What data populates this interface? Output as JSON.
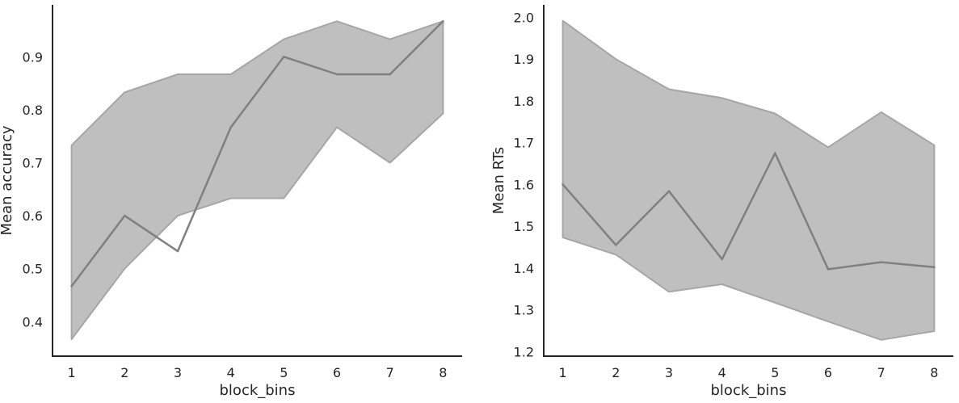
{
  "chart_data": [
    {
      "type": "line",
      "x": [
        1,
        2,
        3,
        4,
        5,
        6,
        7,
        8
      ],
      "xticks": [
        "1",
        "2",
        "3",
        "4",
        "5",
        "6",
        "7",
        "8"
      ],
      "xlim": [
        0.64,
        8.36
      ],
      "xlabel": "block_bins",
      "ylabel": "Mean accuracy",
      "ylim": [
        0.335,
        0.998
      ],
      "yticks": [
        "0.4",
        "0.5",
        "0.6",
        "0.7",
        "0.8",
        "0.9"
      ],
      "series": [
        {
          "values": [
            0.467,
            0.6,
            0.533,
            0.767,
            0.9,
            0.867,
            0.867,
            0.967
          ],
          "ci_upper": [
            0.733,
            0.833,
            0.867,
            0.867,
            0.933,
            0.967,
            0.933,
            0.967
          ],
          "ci_lower": [
            0.367,
            0.5,
            0.6,
            0.633,
            0.633,
            0.767,
            0.7,
            0.793
          ],
          "line_color": "#808080",
          "fill_color": "#bfbfbf"
        }
      ],
      "grid": false,
      "legend": "none"
    },
    {
      "type": "line",
      "x": [
        1,
        2,
        3,
        4,
        5,
        6,
        7,
        8
      ],
      "xticks": [
        "1",
        "2",
        "3",
        "4",
        "5",
        "6",
        "7",
        "8"
      ],
      "xlim": [
        0.64,
        8.36
      ],
      "xlabel": "block_bins",
      "ylabel": "Mean RTs",
      "ylim": [
        1.189,
        2.03
      ],
      "yticks": [
        "1.2",
        "1.3",
        "1.4",
        "1.5",
        "1.6",
        "1.7",
        "1.8",
        "1.9",
        "2.0"
      ],
      "series": [
        {
          "values": [
            1.6,
            1.455,
            1.584,
            1.421,
            1.675,
            1.397,
            1.414,
            1.402
          ],
          "ci_upper": [
            1.992,
            1.9,
            1.828,
            1.807,
            1.77,
            1.689,
            1.773,
            1.694
          ],
          "ci_lower": [
            1.473,
            1.432,
            1.343,
            1.361,
            1.317,
            1.272,
            1.228,
            1.249
          ],
          "line_color": "#808080",
          "fill_color": "#bfbfbf"
        }
      ],
      "grid": false,
      "legend": "none"
    }
  ]
}
